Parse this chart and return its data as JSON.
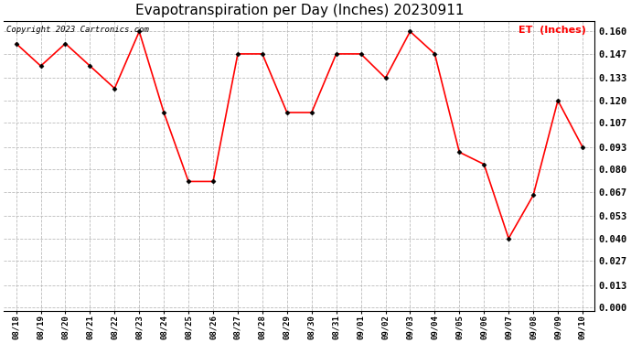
{
  "title": "Evapotranspiration per Day (Inches) 20230911",
  "copyright": "Copyright 2023 Cartronics.com",
  "legend_label": "ET  (Inches)",
  "dates": [
    "08/18",
    "08/19",
    "08/20",
    "08/21",
    "08/22",
    "08/23",
    "08/24",
    "08/25",
    "08/26",
    "08/27",
    "08/28",
    "08/29",
    "08/30",
    "08/31",
    "09/01",
    "09/02",
    "09/03",
    "09/04",
    "09/05",
    "09/06",
    "09/07",
    "09/08",
    "09/09",
    "09/10"
  ],
  "values": [
    0.153,
    0.14,
    0.153,
    0.14,
    0.127,
    0.16,
    0.113,
    0.073,
    0.073,
    0.147,
    0.147,
    0.113,
    0.113,
    0.147,
    0.147,
    0.133,
    0.16,
    0.147,
    0.09,
    0.083,
    0.04,
    0.065,
    0.12,
    0.093
  ],
  "yticks": [
    0.0,
    0.013,
    0.027,
    0.04,
    0.053,
    0.067,
    0.08,
    0.093,
    0.107,
    0.12,
    0.133,
    0.147,
    0.16
  ],
  "line_color": "red",
  "marker_color": "black",
  "title_fontsize": 11,
  "copyright_fontsize": 6.5,
  "legend_color": "red",
  "legend_fontsize": 8,
  "background_color": "white",
  "grid_color": "#bbbbbb",
  "tick_fontsize": 7.5,
  "xtick_fontsize": 6.5
}
